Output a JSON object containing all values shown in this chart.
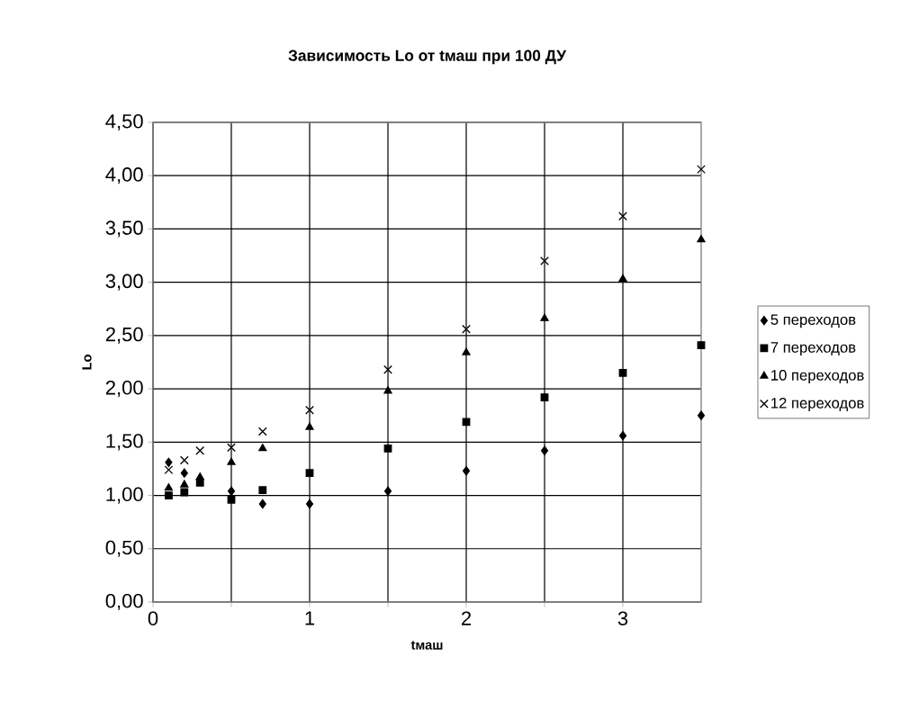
{
  "chart_data": {
    "type": "scatter",
    "title": "Зависимость Lo от tмаш при 100 ДУ",
    "xlabel": "tмаш",
    "ylabel": "Lo",
    "x": [
      0.1,
      0.2,
      0.3,
      0.5,
      0.7,
      1,
      1.5,
      2,
      2.5,
      3,
      3.5
    ],
    "series": [
      {
        "name": "5 переходов",
        "color": "#000000",
        "marker": "diamond",
        "values": [
          1.31,
          1.21,
          null,
          1.04,
          0.92,
          0.92,
          1.04,
          1.23,
          1.42,
          1.56,
          1.75
        ]
      },
      {
        "name": "7 переходов",
        "color": "#000000",
        "marker": "square",
        "values": [
          1.0,
          1.03,
          1.12,
          0.96,
          1.05,
          1.21,
          1.44,
          1.69,
          1.92,
          2.15,
          2.41
        ]
      },
      {
        "name": "10 переходов",
        "color": "#000000",
        "marker": "triangle",
        "values": [
          1.07,
          1.1,
          1.17,
          1.31,
          1.44,
          1.64,
          1.98,
          2.34,
          2.66,
          3.03,
          3.4
        ]
      },
      {
        "name": "12 переходов",
        "color": "#000000",
        "marker": "cross",
        "values": [
          1.24,
          1.33,
          1.42,
          1.45,
          1.6,
          1.8,
          2.18,
          2.56,
          3.2,
          3.62,
          4.06
        ]
      }
    ],
    "xlim": [
      0,
      3.5
    ],
    "ylim": [
      0,
      4.5
    ],
    "xticks": [
      0,
      {
        "value": 0.5,
        "label": null
      },
      1,
      {
        "value": 1.5,
        "label": null
      },
      2,
      {
        "value": 2.5,
        "label": null
      },
      3
    ],
    "yticks": [
      {
        "value": 0,
        "label": "0,00"
      },
      {
        "value": 0.5,
        "label": "0,50"
      },
      {
        "value": 1,
        "label": "1,00"
      },
      {
        "value": 1.5,
        "label": "1,50"
      },
      {
        "value": 2,
        "label": "2,00"
      },
      {
        "value": 2.5,
        "label": "2,50"
      },
      {
        "value": 3,
        "label": "3,00"
      },
      {
        "value": 3.5,
        "label": "3,50"
      },
      {
        "value": 4,
        "label": "4,00"
      },
      {
        "value": 4.5,
        "label": "4,50"
      }
    ],
    "grid": true,
    "legend": "right"
  }
}
